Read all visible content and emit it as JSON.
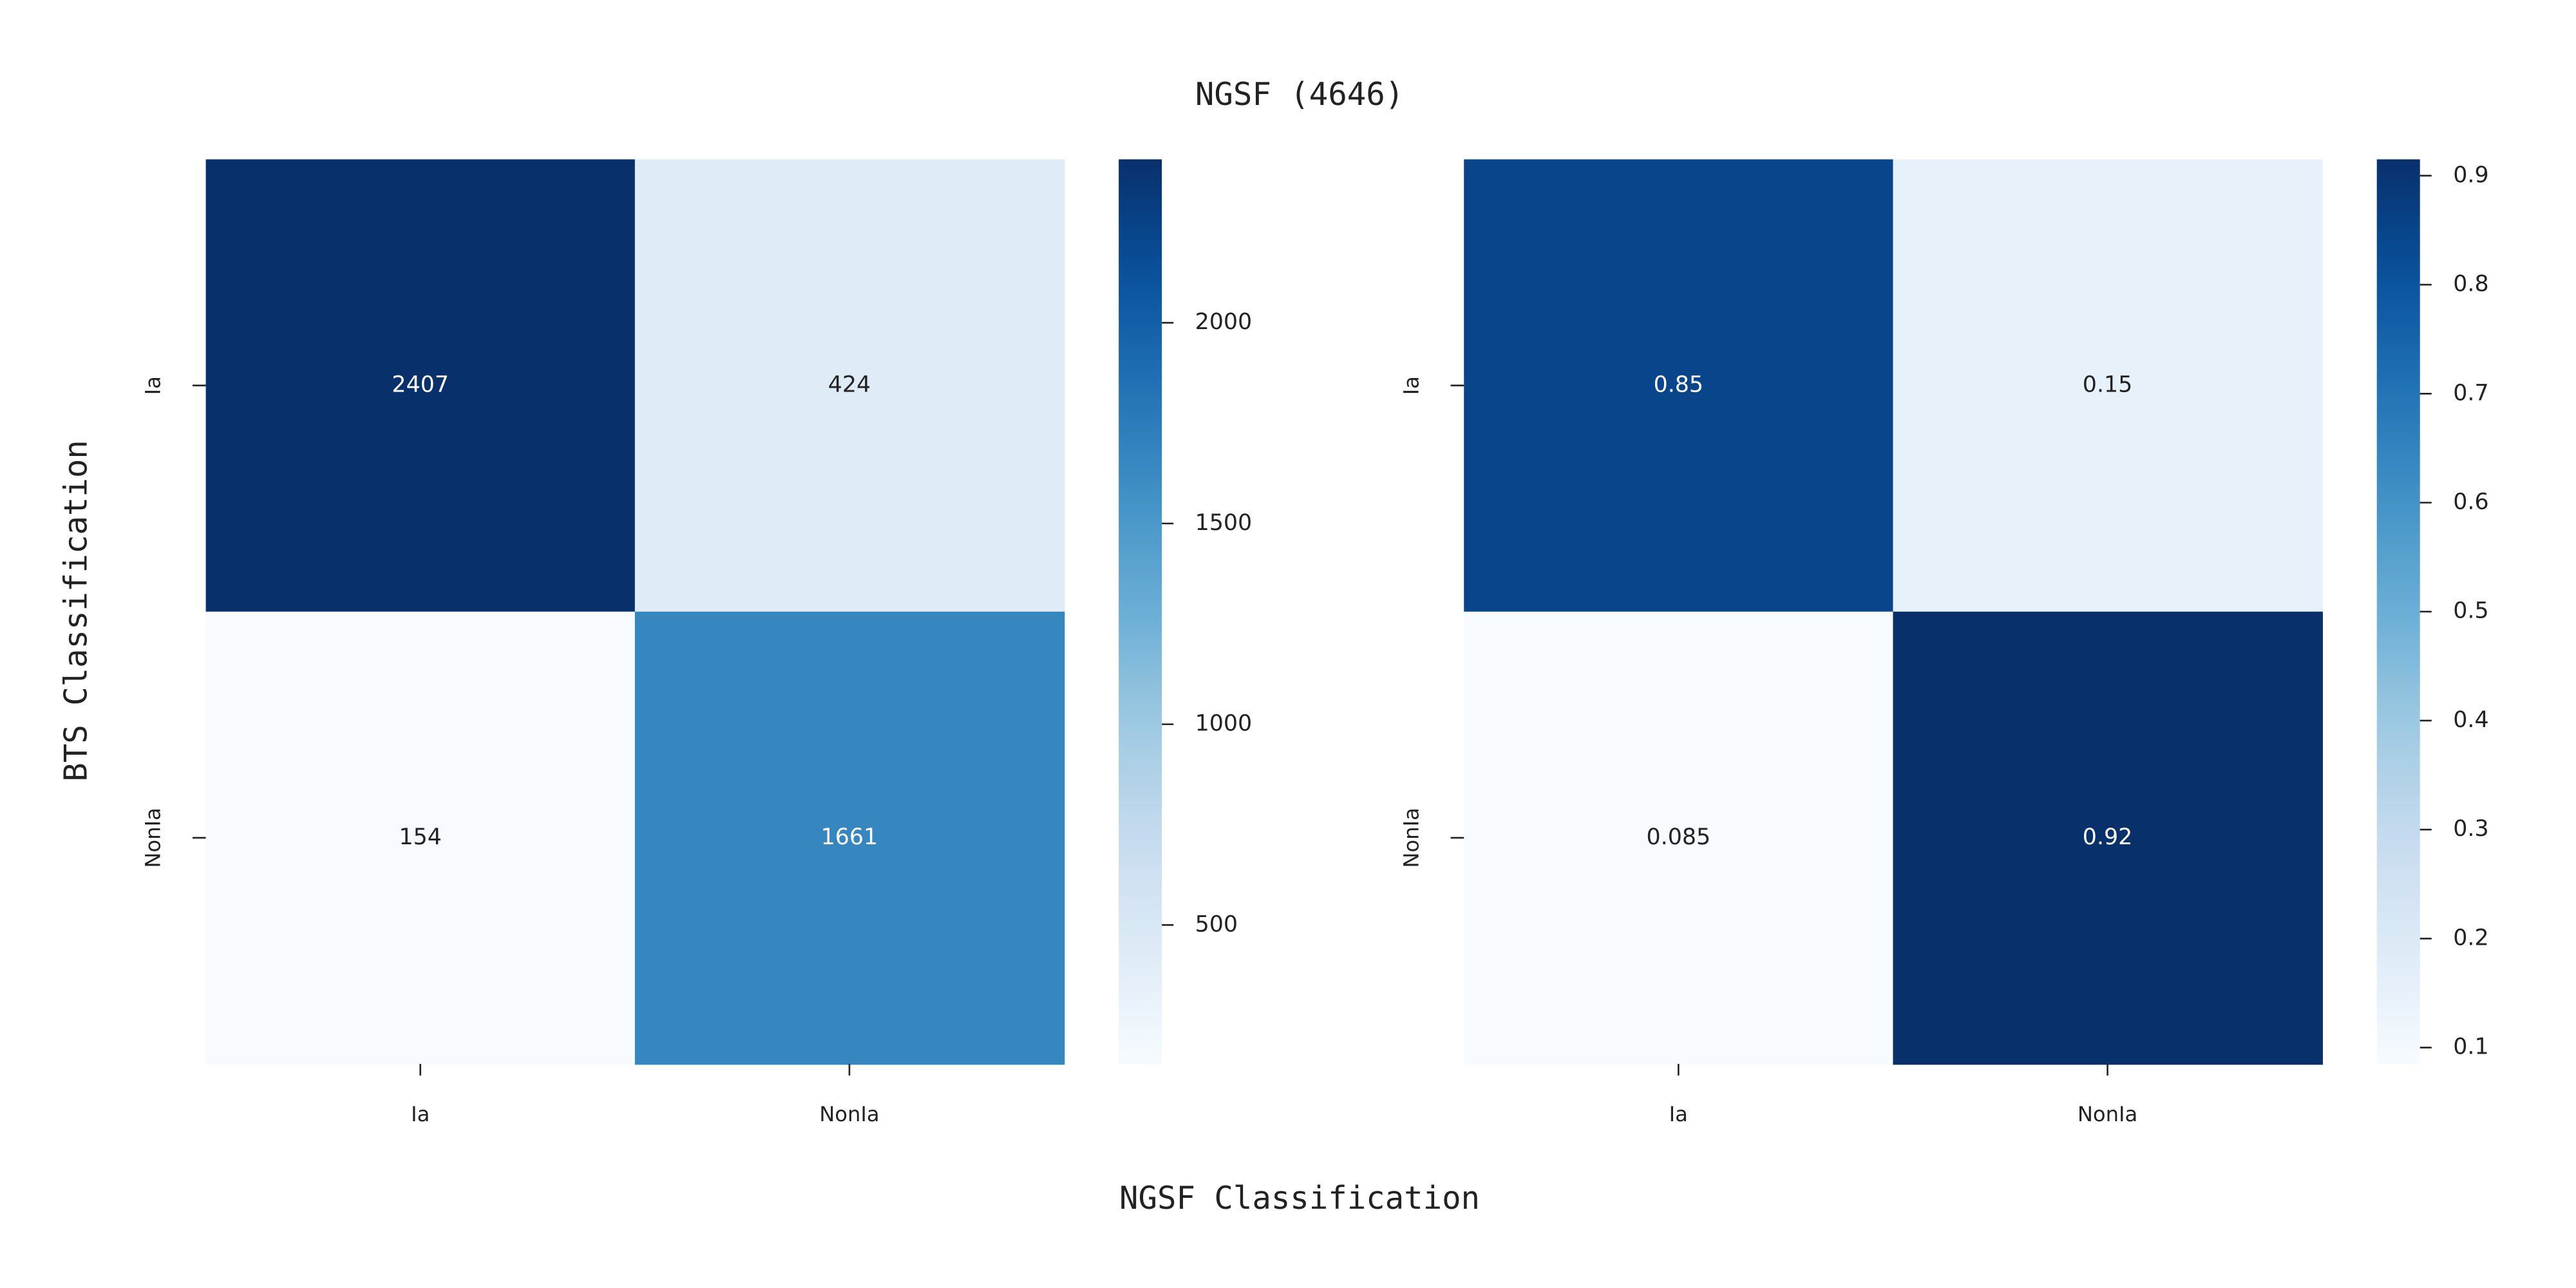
{
  "title": "NGSF (4646)",
  "xlabel": "NGSF Classification",
  "ylabel": "BTS Classification",
  "chart_data": [
    {
      "type": "heatmap",
      "colormap": "Blues",
      "x": [
        "Ia",
        "NonIa"
      ],
      "y": [
        "Ia",
        "NonIa"
      ],
      "values": [
        [
          2407,
          424
        ],
        [
          154,
          1661
        ]
      ],
      "clim": [
        154,
        2407
      ],
      "cticks": [
        500,
        1000,
        1500,
        2000
      ]
    },
    {
      "type": "heatmap",
      "colormap": "Blues",
      "x": [
        "Ia",
        "NonIa"
      ],
      "y": [
        "Ia",
        "NonIa"
      ],
      "values": [
        [
          0.85,
          0.15
        ],
        [
          0.085,
          0.92
        ]
      ],
      "clim": [
        0.085,
        0.915
      ],
      "cticks": [
        0.1,
        0.2,
        0.3,
        0.4,
        0.5,
        0.6,
        0.7,
        0.8,
        0.9
      ]
    }
  ]
}
